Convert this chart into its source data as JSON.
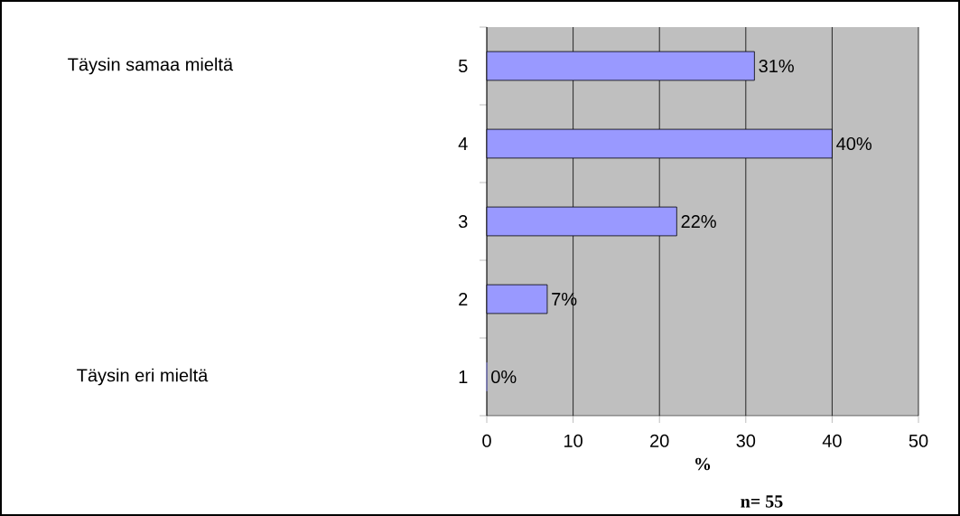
{
  "chart_data": {
    "type": "bar",
    "orientation": "horizontal",
    "categories": [
      "5",
      "4",
      "3",
      "2",
      "1"
    ],
    "values": [
      31,
      40,
      22,
      7,
      0
    ],
    "value_labels": [
      "31%",
      "40%",
      "22%",
      "7%",
      "0%"
    ],
    "color": "#9999ff",
    "xlim": [
      0,
      50
    ],
    "xticks": [
      0,
      10,
      20,
      30,
      40,
      50
    ],
    "xlabel": "%",
    "grid": "x",
    "annotations": [
      "Täysin samaa mieltä",
      "Täysin eri mieltä",
      "n= 55"
    ]
  }
}
